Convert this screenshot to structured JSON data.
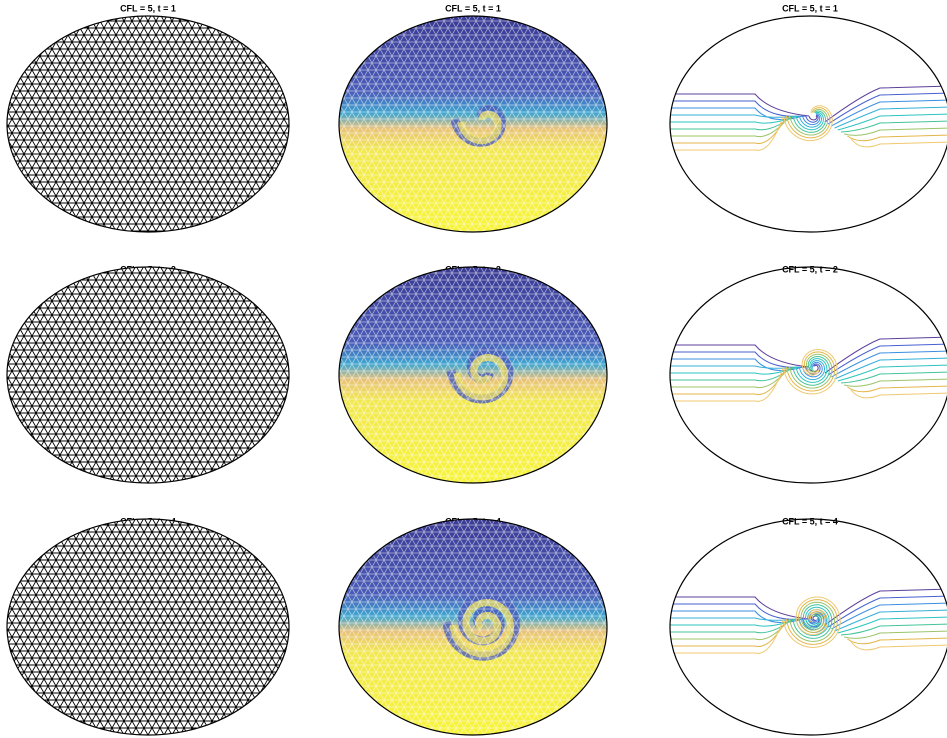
{
  "rows": [
    [
      "CFL = 5, t = 1",
      "CFL = 5, t = 1",
      "CFL = 5, t = 1"
    ],
    [
      "CFL = 5, t = 2",
      "CFL = 5, t = 2",
      "CFL = 5, t = 2"
    ],
    [
      "CFL = 5, t = 4",
      "CFL = 5, t = 4",
      "CFL = 5, t = 4"
    ]
  ]
}
